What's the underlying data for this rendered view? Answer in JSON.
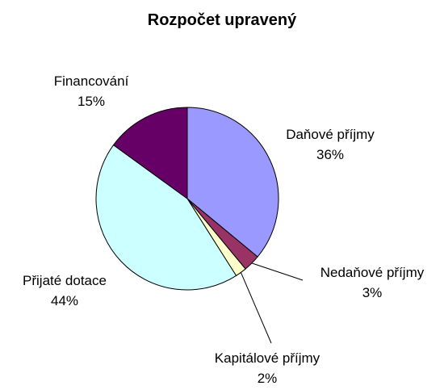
{
  "chart_data": {
    "type": "pie",
    "title": "Rozpočet upravený",
    "slices": [
      {
        "label": "Daňové příjmy",
        "value": 36,
        "value_text": "36%",
        "color": "#9999ff"
      },
      {
        "label": "Nedaňové příjmy",
        "value": 3,
        "value_text": "3%",
        "color": "#993366"
      },
      {
        "label": "Kapitálové příjmy",
        "value": 2,
        "value_text": "2%",
        "color": "#ffffcc"
      },
      {
        "label": "Přijaté dotace",
        "value": 44,
        "value_text": "44%",
        "color": "#ccffff"
      },
      {
        "label": "Financování",
        "value": 15,
        "value_text": "15%",
        "color": "#660066"
      }
    ],
    "legend": "none"
  }
}
